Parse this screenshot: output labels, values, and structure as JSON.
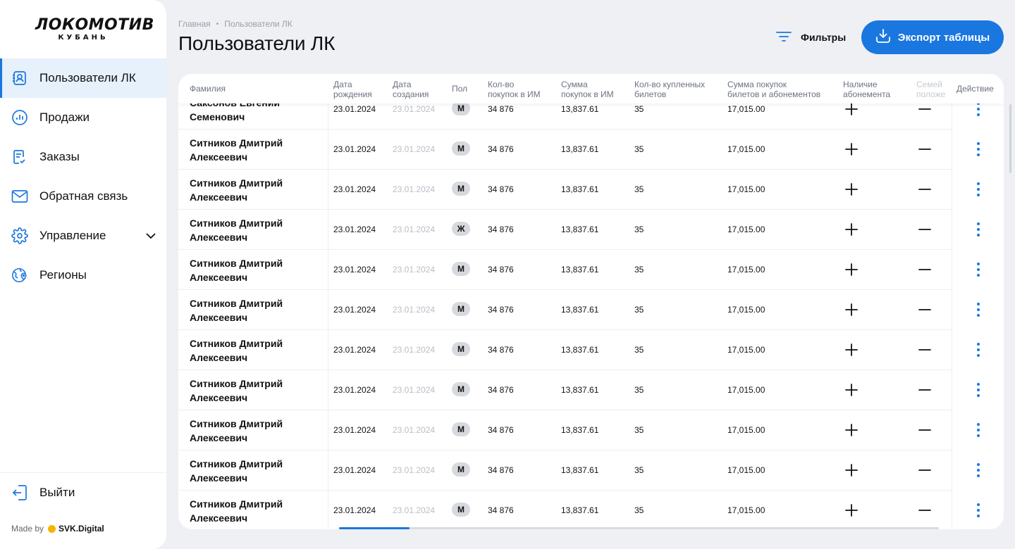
{
  "brand": {
    "logo_main": "ЛОКОМОТИВ",
    "logo_sub": "КУБАНЬ"
  },
  "sidebar": {
    "items": [
      {
        "label": "Пользователи ЛК",
        "icon": "user-card-icon",
        "active": true
      },
      {
        "label": "Продажи",
        "icon": "chart-circle-icon"
      },
      {
        "label": "Заказы",
        "icon": "order-list-icon"
      },
      {
        "label": "Обратная связь",
        "icon": "mail-icon"
      },
      {
        "label": "Управление",
        "icon": "gear-icon",
        "has_submenu": true
      },
      {
        "label": "Регионы",
        "icon": "globe-pin-icon"
      }
    ],
    "logout_label": "Выйти",
    "made_by_label": "Made by",
    "made_by_brand": "SVK.Digital"
  },
  "breadcrumb": {
    "home": "Главная",
    "current": "Пользователи ЛК"
  },
  "page_title": "Пользователи ЛК",
  "toolbar": {
    "filters_label": "Фильтры",
    "export_label": "Экспорт таблицы"
  },
  "colors": {
    "accent": "#1a77e0",
    "badge_bg": "#d6d9dd",
    "background": "#eef0f4"
  },
  "table": {
    "columns": {
      "surname": "Фамилия",
      "dob_1": "Дата",
      "dob_2": "рождения",
      "created_1": "Дата",
      "created_2": "создания",
      "gender": "Пол",
      "buys_1": "Кол-во",
      "buys_2": "покупок в ИМ",
      "sum_1": "Сумма",
      "sum_2": "покупок в ИМ",
      "tickets_1": "Кол-во купленных",
      "tickets_2": "билетов",
      "total_1": "Сумма покупок",
      "total_2": "билетов и абонементов",
      "sub_1": "Наличие",
      "sub_2": "абонемента",
      "family_1": "Семей",
      "family_2": "положе",
      "action": "Действие"
    },
    "rows": [
      {
        "name_1": "Саксонов Евгений",
        "name_2": "Семенович",
        "dob": "23.01.2024",
        "created": "23.01.2024",
        "gender": "М",
        "buys": "34 876",
        "sum": "13,837.61",
        "tickets": "35",
        "total": "17,015.00"
      },
      {
        "name_1": "Ситников Дмитрий",
        "name_2": "Алексеевич",
        "dob": "23.01.2024",
        "created": "23.01.2024",
        "gender": "М",
        "buys": "34 876",
        "sum": "13,837.61",
        "tickets": "35",
        "total": "17,015.00"
      },
      {
        "name_1": "Ситников Дмитрий",
        "name_2": "Алексеевич",
        "dob": "23.01.2024",
        "created": "23.01.2024",
        "gender": "М",
        "buys": "34 876",
        "sum": "13,837.61",
        "tickets": "35",
        "total": "17,015.00"
      },
      {
        "name_1": "Ситников Дмитрий",
        "name_2": "Алексеевич",
        "dob": "23.01.2024",
        "created": "23.01.2024",
        "gender": "Ж",
        "buys": "34 876",
        "sum": "13,837.61",
        "tickets": "35",
        "total": "17,015.00"
      },
      {
        "name_1": "Ситников Дмитрий",
        "name_2": "Алексеевич",
        "dob": "23.01.2024",
        "created": "23.01.2024",
        "gender": "М",
        "buys": "34 876",
        "sum": "13,837.61",
        "tickets": "35",
        "total": "17,015.00"
      },
      {
        "name_1": "Ситников Дмитрий",
        "name_2": "Алексеевич",
        "dob": "23.01.2024",
        "created": "23.01.2024",
        "gender": "М",
        "buys": "34 876",
        "sum": "13,837.61",
        "tickets": "35",
        "total": "17,015.00"
      },
      {
        "name_1": "Ситников Дмитрий",
        "name_2": "Алексеевич",
        "dob": "23.01.2024",
        "created": "23.01.2024",
        "gender": "М",
        "buys": "34 876",
        "sum": "13,837.61",
        "tickets": "35",
        "total": "17,015.00"
      },
      {
        "name_1": "Ситников Дмитрий",
        "name_2": "Алексеевич",
        "dob": "23.01.2024",
        "created": "23.01.2024",
        "gender": "М",
        "buys": "34 876",
        "sum": "13,837.61",
        "tickets": "35",
        "total": "17,015.00"
      },
      {
        "name_1": "Ситников Дмитрий",
        "name_2": "Алексеевич",
        "dob": "23.01.2024",
        "created": "23.01.2024",
        "gender": "М",
        "buys": "34 876",
        "sum": "13,837.61",
        "tickets": "35",
        "total": "17,015.00"
      },
      {
        "name_1": "Ситников Дмитрий",
        "name_2": "Алексеевич",
        "dob": "23.01.2024",
        "created": "23.01.2024",
        "gender": "М",
        "buys": "34 876",
        "sum": "13,837.61",
        "tickets": "35",
        "total": "17,015.00"
      },
      {
        "name_1": "Ситников Дмитрий",
        "name_2": "Алексеевич",
        "dob": "23.01.2024",
        "created": "23.01.2024",
        "gender": "М",
        "buys": "34 876",
        "sum": "13,837.61",
        "tickets": "35",
        "total": "17,015.00"
      }
    ]
  }
}
